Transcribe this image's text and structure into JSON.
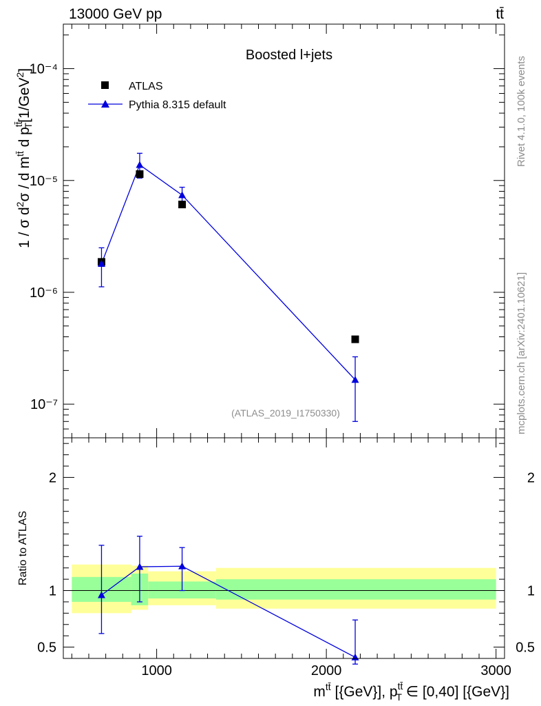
{
  "header": {
    "left": "13000 GeV pp",
    "right": "tt̄"
  },
  "side_texts": {
    "rivet": "Rivet 4.1.0,  100k events",
    "mcplots": "mcplots.cern.ch [arXiv:2401.10621]"
  },
  "colors": {
    "mc": "#0000dd",
    "data": "#000000",
    "band_inner": "#99ff99",
    "band_outer": "#ffff99"
  },
  "chart_data": [
    {
      "type": "scatter",
      "title": "Boosted l+jets",
      "annotation": "(ATLAS_2019_I1750330)",
      "ylabel": "1 / σ d²σ / d  m^tt̄ d p_T^tt̄ [1/GeV²]",
      "yscale": "log",
      "xlim": [
        450,
        3050
      ],
      "ylim": [
        5e-08,
        0.00025
      ],
      "y_tick_labels": [
        "10⁻⁴",
        "10⁻⁵",
        "10⁻⁶",
        "10⁻⁷"
      ],
      "legend": {
        "placement": "top-left",
        "entries": [
          "ATLAS",
          "Pythia 8.315 default"
        ]
      },
      "series": [
        {
          "name": "ATLAS",
          "marker": "square",
          "x": [
            675,
            900,
            1150,
            2170
          ],
          "y": [
            1.87e-06,
            1.14e-05,
            6.1e-06,
            3.8e-07
          ]
        },
        {
          "name": "Pythia 8.315 default",
          "marker": "triangle",
          "x": [
            675,
            900,
            1150,
            2170
          ],
          "y": [
            1.8e-06,
            1.38e-05,
            7.4e-06,
            1.65e-07
          ],
          "yerr_low": [
            1.12e-06,
            1.05e-05,
            6.2e-06,
            7e-08
          ],
          "yerr_high": [
            2.5e-06,
            1.75e-05,
            8.7e-06,
            2.65e-07
          ]
        }
      ]
    },
    {
      "type": "line",
      "ylabel": "Ratio to ATLAS",
      "xlabel": "m^tt̄ [{GeV}], p_T^tt̄ ∈ [0,40] [{GeV}]",
      "xlim": [
        450,
        3050
      ],
      "ylim": [
        0.4,
        2.35
      ],
      "x_ticks": [
        1000,
        2000,
        3000
      ],
      "x_tick_labels": [
        "1000",
        "2000",
        "3000"
      ],
      "y_ticks": [
        0.5,
        1,
        2
      ],
      "y_tick_labels": [
        "0.5",
        "1",
        "2"
      ],
      "reference_line": 1,
      "bands": [
        {
          "x0": 500,
          "x1": 850,
          "inner": [
            0.9,
            1.12
          ],
          "outer": [
            0.8,
            1.23
          ]
        },
        {
          "x0": 850,
          "x1": 950,
          "inner": [
            0.87,
            1.15
          ],
          "outer": [
            0.83,
            1.22
          ]
        },
        {
          "x0": 950,
          "x1": 1350,
          "inner": [
            0.93,
            1.08
          ],
          "outer": [
            0.87,
            1.17
          ]
        },
        {
          "x0": 1350,
          "x1": 3000,
          "inner": [
            0.92,
            1.1
          ],
          "outer": [
            0.84,
            1.2
          ]
        }
      ],
      "series": [
        {
          "name": "Pythia 8.315 default",
          "x": [
            675,
            900,
            1150,
            2170
          ],
          "y": [
            0.96,
            1.21,
            1.215,
            0.41
          ],
          "yerr_low": [
            0.62,
            0.9,
            1.0,
            0.35
          ],
          "yerr_high": [
            1.4,
            1.48,
            1.38,
            0.74
          ]
        }
      ]
    }
  ]
}
